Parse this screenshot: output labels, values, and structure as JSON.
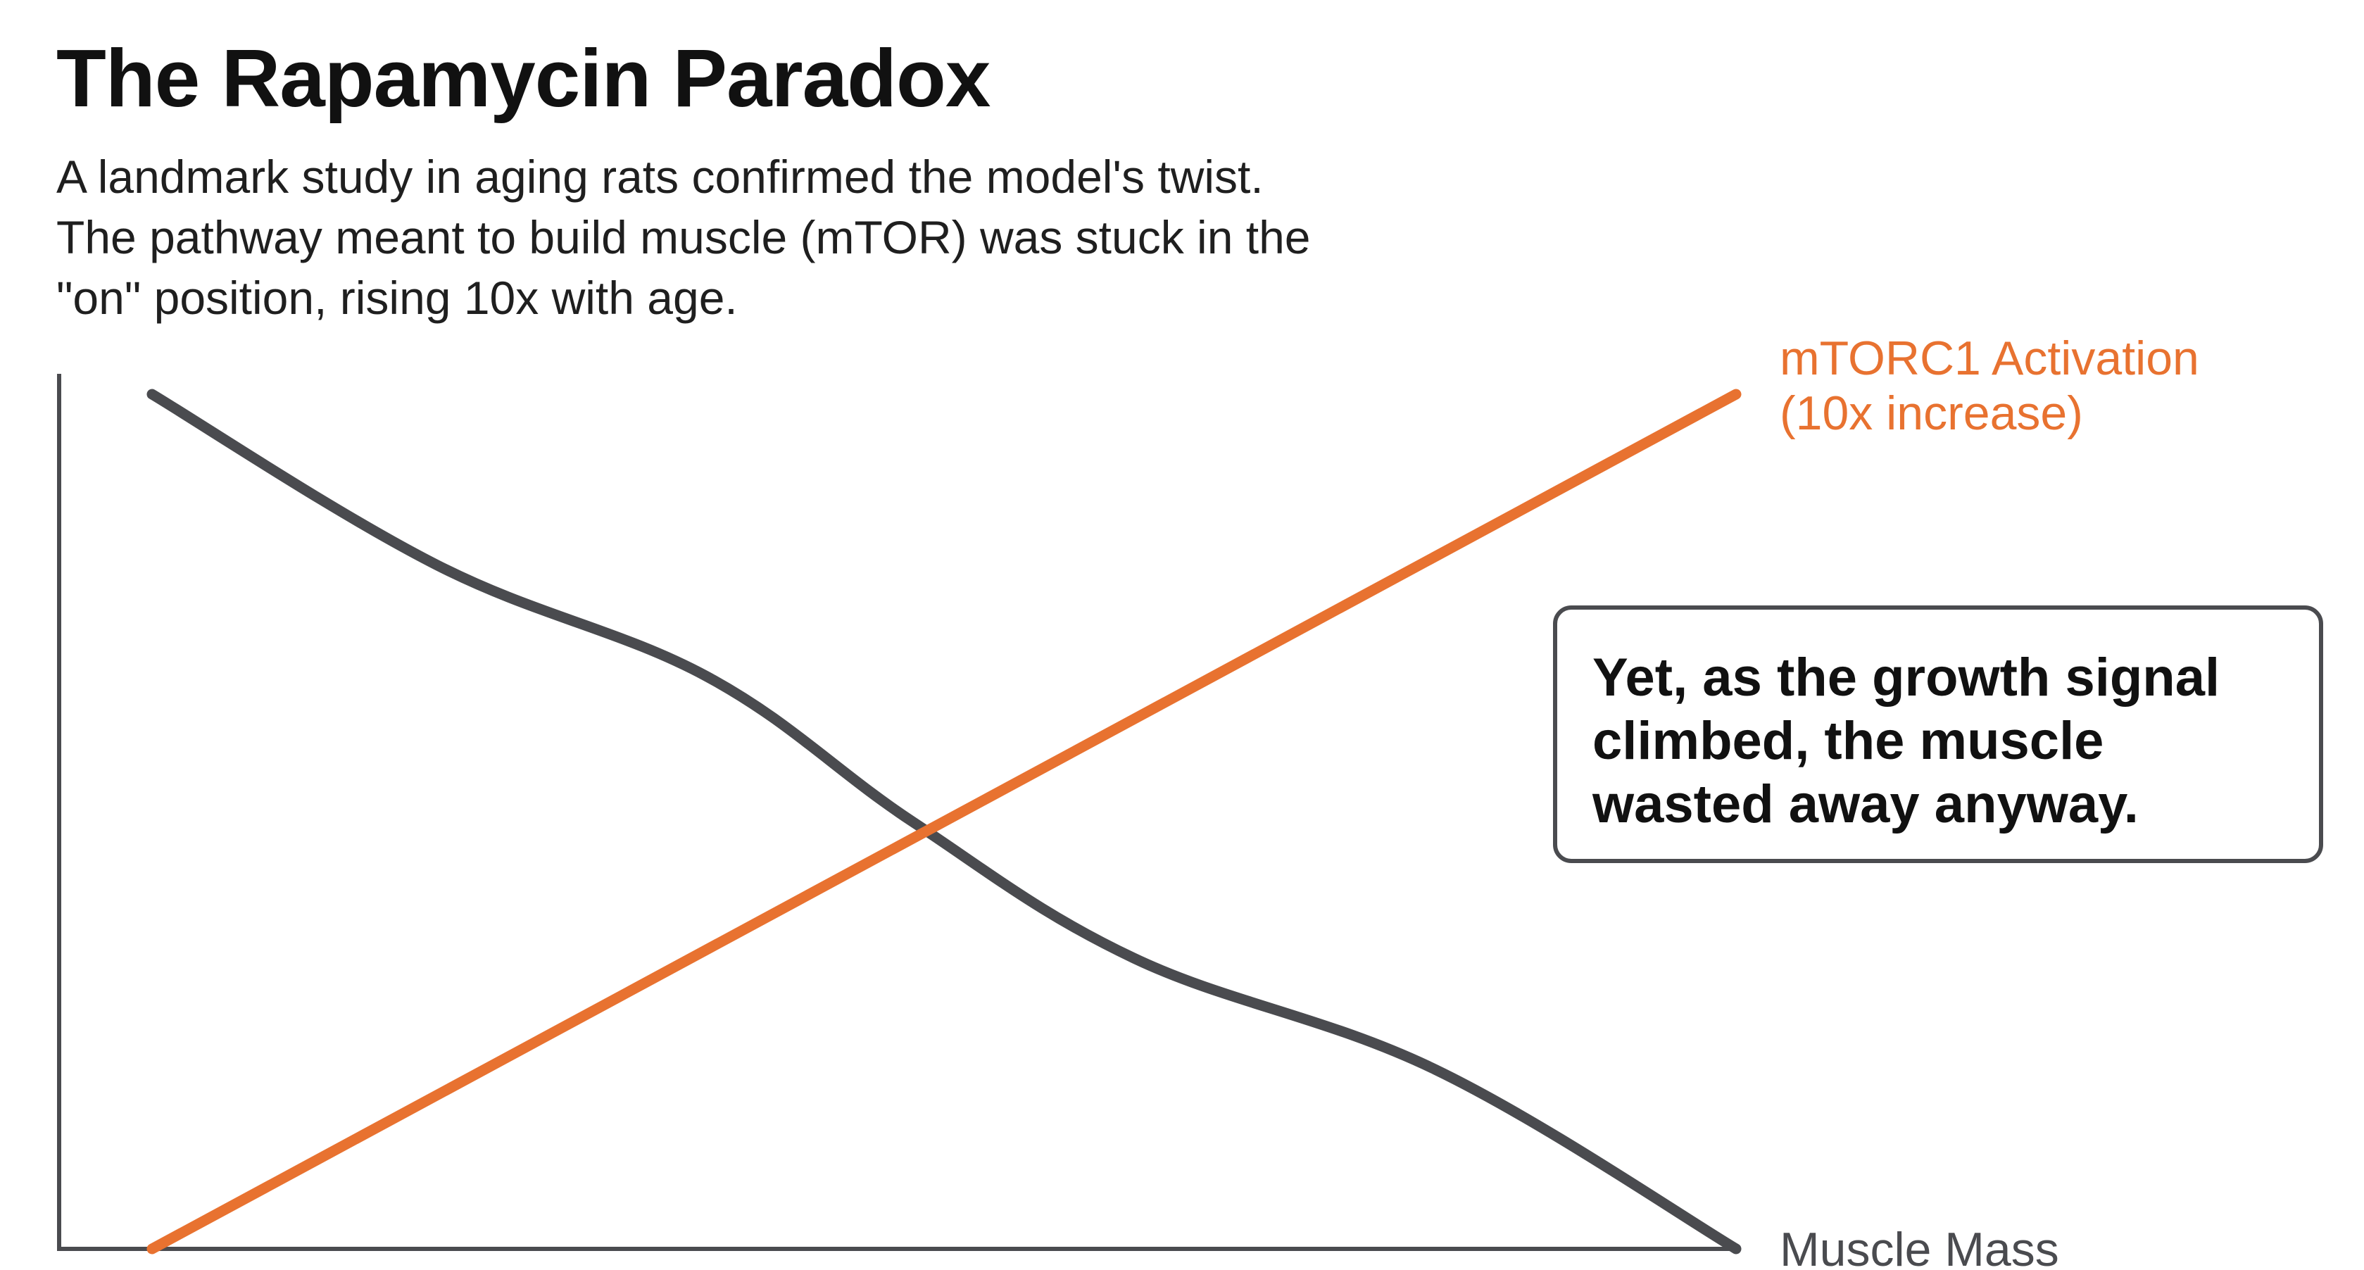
{
  "title": "The Rapamycin Paradox",
  "subtitle_lines": [
    "A landmark study in aging rats confirmed the model's twist.",
    "The pathway meant to build muscle (mTOR) was stuck in the",
    "\"on\" position, rising 10x with age."
  ],
  "callout_lines": [
    "Yet, as the growth signal",
    "climbed, the muscle",
    "wasted away anyway."
  ],
  "colors": {
    "mtorc1": "#e87230",
    "muscle": "#4a4b4f",
    "axis": "#4a4b4f",
    "text": "#111111"
  },
  "chart_data": {
    "type": "line",
    "xlabel": "",
    "ylabel": "",
    "xlim": [
      0,
      10
    ],
    "ylim": [
      0,
      10.8
    ],
    "grid": false,
    "legend": "direct labels at line ends",
    "series": [
      {
        "name": "mTORC1 Activation (10x increase)",
        "label_lines": [
          "mTORC1 Activation",
          "(10x increase)"
        ],
        "color": "#e87230",
        "x": [
          0,
          10
        ],
        "y": [
          0,
          10
        ]
      },
      {
        "name": "Muscle Mass",
        "label_lines": [
          "Muscle Mass"
        ],
        "color": "#4a4b4f",
        "x": [
          0,
          1.8,
          3.5,
          4.8,
          6.2,
          8.1,
          10
        ],
        "y": [
          10,
          8.0,
          6.7,
          5.0,
          3.4,
          2.1,
          0
        ]
      }
    ]
  }
}
